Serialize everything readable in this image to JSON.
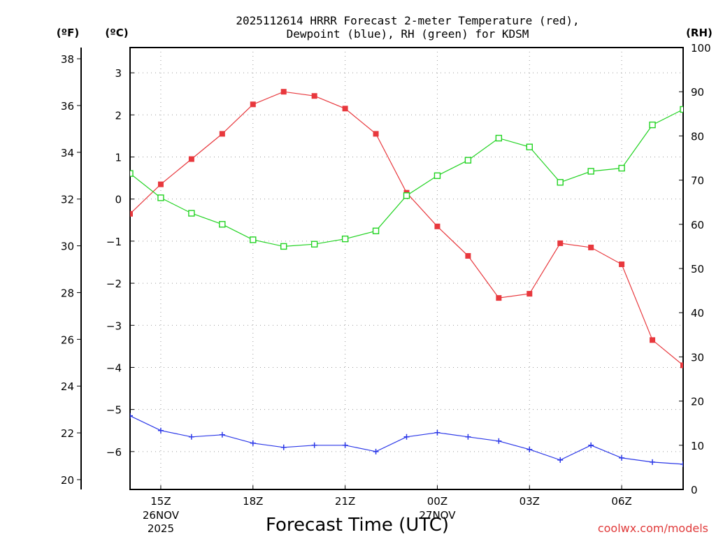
{
  "chart_data": {
    "type": "line",
    "title_line1": "2025112614 HRRR Forecast 2-meter Temperature (red),",
    "title_line2": "Dewpoint (blue), RH (green) for KDSM",
    "xlabel": "Forecast Time (UTC)",
    "credit": "coolwx.com/models",
    "units": {
      "fahrenheit": "(ºF)",
      "celsius": "(ºC)",
      "rh": "(RH)"
    },
    "x": [
      14,
      15,
      16,
      17,
      18,
      19,
      20,
      21,
      22,
      23,
      24,
      25,
      26,
      27,
      28,
      29,
      30,
      31,
      32
    ],
    "xlim": [
      14,
      32
    ],
    "x_ticks": [
      {
        "x": 15,
        "label": "15Z",
        "sub1": "26NOV",
        "sub2": "2025"
      },
      {
        "x": 18,
        "label": "18Z",
        "sub1": "",
        "sub2": ""
      },
      {
        "x": 21,
        "label": "21Z",
        "sub1": "",
        "sub2": ""
      },
      {
        "x": 24,
        "label": "00Z",
        "sub1": "27NOV",
        "sub2": ""
      },
      {
        "x": 27,
        "label": "03Z",
        "sub1": "",
        "sub2": ""
      },
      {
        "x": 30,
        "label": "06Z",
        "sub1": "",
        "sub2": ""
      }
    ],
    "celsius_axis": {
      "range": [
        -6.9,
        3.6
      ],
      "ticks": [
        3,
        2,
        1,
        0,
        -1,
        -2,
        -3,
        -4,
        -5,
        -6
      ]
    },
    "fahrenheit_axis": {
      "range": [
        19.58,
        38.48
      ],
      "ticks": [
        38,
        36,
        34,
        32,
        30,
        28,
        26,
        24,
        22,
        20
      ]
    },
    "rh_axis": {
      "range": [
        0,
        100
      ],
      "ticks": [
        100,
        90,
        80,
        70,
        60,
        50,
        40,
        30,
        20,
        10,
        0
      ]
    },
    "series": [
      {
        "name": "Temperature",
        "units": "C",
        "color": "#e8383d",
        "marker": "filled-square",
        "values": [
          -0.35,
          0.35,
          0.95,
          1.55,
          2.25,
          2.55,
          2.45,
          2.15,
          1.55,
          0.15,
          -0.65,
          -1.35,
          -2.35,
          -2.25,
          -1.05,
          -1.15,
          -1.55,
          -3.35,
          -3.95
        ]
      },
      {
        "name": "Dewpoint",
        "units": "C",
        "color": "#2b38e8",
        "marker": "plus",
        "values": [
          -5.15,
          -5.5,
          -5.65,
          -5.6,
          -5.8,
          -5.9,
          -5.85,
          -5.85,
          -6.0,
          -5.65,
          -5.55,
          -5.65,
          -5.75,
          -5.95,
          -6.2,
          -5.85,
          -6.15,
          -6.25,
          -6.3
        ]
      },
      {
        "name": "RH",
        "units": "%",
        "color": "#22d322",
        "marker": "open-square",
        "values": [
          71.5,
          66,
          62.5,
          60,
          56.5,
          55,
          55.5,
          56.7,
          58.5,
          66.5,
          71,
          74.5,
          79.5,
          77.5,
          69.5,
          72,
          72.7,
          82.5,
          86
        ]
      }
    ]
  }
}
